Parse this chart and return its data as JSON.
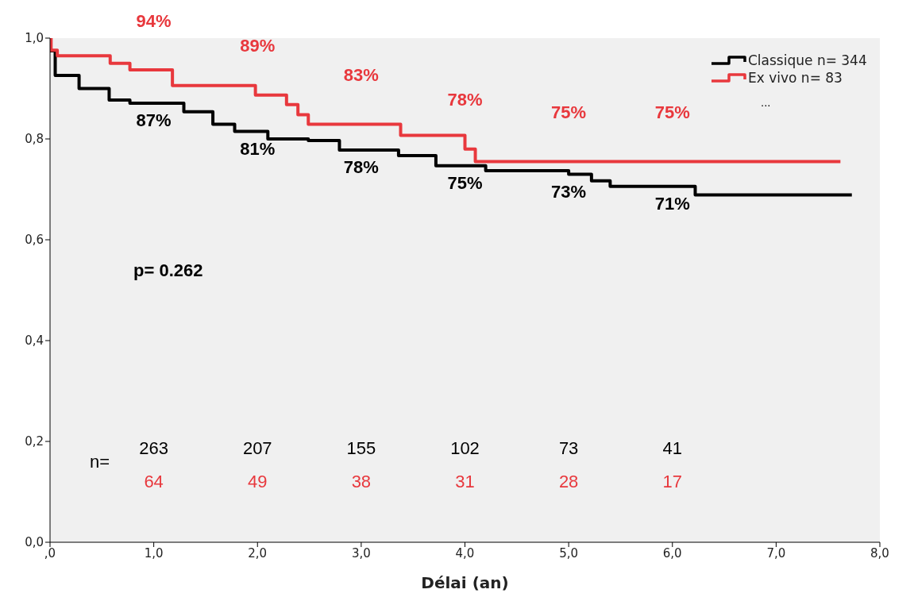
{
  "chart_data": {
    "type": "step",
    "xlabel": "Délai (an)",
    "xlim": [
      0,
      8
    ],
    "xticks": [
      {
        "value": 0,
        "label": ",0"
      },
      {
        "value": 1,
        "label": "1,0"
      },
      {
        "value": 2,
        "label": "2,0"
      },
      {
        "value": 3,
        "label": "3,0"
      },
      {
        "value": 4,
        "label": "4,0"
      },
      {
        "value": 5,
        "label": "5,0"
      },
      {
        "value": 6,
        "label": "6,0"
      },
      {
        "value": 7,
        "label": "7,0"
      },
      {
        "value": 8,
        "label": "8,0"
      }
    ],
    "ylim": [
      0,
      1
    ],
    "yticks": [
      {
        "value": 0,
        "label": "0,0"
      },
      {
        "value": 0.2,
        "label": "0,2"
      },
      {
        "value": 0.4,
        "label": "0,4"
      },
      {
        "value": 0.6,
        "label": "0,6"
      },
      {
        "value": 0.8,
        "label": "0,8"
      },
      {
        "value": 1,
        "label": "1,0"
      }
    ],
    "grid": false,
    "legend": "top right",
    "series": [
      {
        "name": "Classique n= 344",
        "color": "#000000",
        "x": [
          0,
          0.05,
          0.28,
          0.57,
          0.77,
          1.29,
          1.57,
          1.78,
          2.1,
          2.49,
          2.79,
          3.36,
          3.72,
          4.2,
          5.0,
          5.22,
          5.4,
          6.22,
          7.73
        ],
        "values": [
          0.975,
          0.926,
          0.9,
          0.877,
          0.871,
          0.854,
          0.829,
          0.815,
          0.8,
          0.797,
          0.778,
          0.767,
          0.747,
          0.737,
          0.73,
          0.717,
          0.706,
          0.689,
          0.689
        ]
      },
      {
        "name": "Ex vivo n= 83",
        "color": "#e8383d",
        "x": [
          0,
          0.01,
          0.07,
          0.58,
          0.77,
          1.18,
          1.98,
          2.28,
          2.39,
          2.49,
          3.38,
          4.0,
          4.1,
          7.62
        ],
        "values": [
          1.0,
          0.976,
          0.965,
          0.95,
          0.937,
          0.906,
          0.887,
          0.868,
          0.848,
          0.829,
          0.807,
          0.78,
          0.755,
          0.755
        ]
      }
    ],
    "annotations": [
      {
        "text": "94%",
        "x": 1,
        "y": 0.937
      },
      {
        "text": "89%",
        "x": 2,
        "y": 0.887
      },
      {
        "text": "83%",
        "x": 3,
        "y": 0.829
      },
      {
        "text": "78%",
        "x": 4,
        "y": 0.78
      },
      {
        "text": "75%",
        "x": 5,
        "y": 0.755
      },
      {
        "text": "75%",
        "x": 6,
        "y": 0.755
      },
      {
        "text": "87%",
        "x": 1,
        "y": 0.871
      },
      {
        "text": "81%",
        "x": 2,
        "y": 0.815
      },
      {
        "text": "78%",
        "x": 3,
        "y": 0.778
      },
      {
        "text": "75%",
        "x": 4,
        "y": 0.747
      },
      {
        "text": "73%",
        "x": 5,
        "y": 0.73
      },
      {
        "text": "71%",
        "x": 6,
        "y": 0.706
      },
      "p= 0.262",
      "n=",
      "263",
      "207",
      "155",
      "102",
      "73",
      "41",
      "64",
      "49",
      "38",
      "31",
      "28",
      "17",
      "..."
    ]
  }
}
